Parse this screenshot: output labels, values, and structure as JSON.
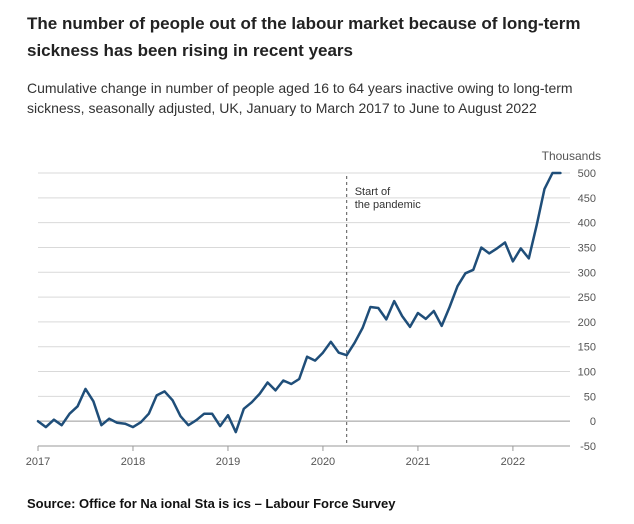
{
  "title": "The number of people out of the labour market because of long-term sickness has been rising in recent years",
  "subtitle": "Cumulative change in number of people aged 16 to 64 years inactive owing to long-term sickness, seasonally adjusted, UK, January to March 2017 to June to August 2022",
  "source": "Source: Office for Na ional Sta is ics – Labour Force Survey",
  "chart_data": {
    "type": "line",
    "units_label": "Thousands",
    "xlim": [
      2017,
      2022.58
    ],
    "ylim": [
      -50,
      500
    ],
    "x_ticks": [
      2017,
      2018,
      2019,
      2020,
      2021,
      2022
    ],
    "x_tick_labels": [
      "2017",
      "2018",
      "2019",
      "2020",
      "2021",
      "2022"
    ],
    "y_ticks": [
      -50,
      0,
      50,
      100,
      150,
      200,
      250,
      300,
      350,
      400,
      450,
      500
    ],
    "y_tick_labels": [
      "-50",
      "0",
      "50",
      "100",
      "150",
      "200",
      "250",
      "300",
      "350",
      "400",
      "450",
      "500"
    ],
    "grid": true,
    "annotation": {
      "x": 2020.25,
      "lines": [
        "Start of",
        "the pandemic"
      ]
    },
    "series": [
      {
        "color": "#1f4e79",
        "x": [
          2017.0,
          2017.083,
          2017.167,
          2017.25,
          2017.333,
          2017.417,
          2017.5,
          2017.583,
          2017.667,
          2017.75,
          2017.833,
          2017.917,
          2018.0,
          2018.083,
          2018.167,
          2018.25,
          2018.333,
          2018.417,
          2018.5,
          2018.583,
          2018.667,
          2018.75,
          2018.833,
          2018.917,
          2019.0,
          2019.083,
          2019.167,
          2019.25,
          2019.333,
          2019.417,
          2019.5,
          2019.583,
          2019.667,
          2019.75,
          2019.833,
          2019.917,
          2020.0,
          2020.083,
          2020.167,
          2020.25,
          2020.333,
          2020.417,
          2020.5,
          2020.583,
          2020.667,
          2020.75,
          2020.833,
          2020.917,
          2021.0,
          2021.083,
          2021.167,
          2021.25,
          2021.333,
          2021.417,
          2021.5,
          2021.583,
          2021.667,
          2021.75,
          2021.833,
          2021.917,
          2022.0,
          2022.083,
          2022.167,
          2022.25,
          2022.333,
          2022.417,
          2022.5
        ],
        "values": [
          0,
          -12,
          3,
          -8,
          15,
          30,
          65,
          40,
          -8,
          5,
          -3,
          -5,
          -12,
          -2,
          15,
          52,
          60,
          42,
          10,
          -8,
          2,
          15,
          15,
          -10,
          12,
          -22,
          25,
          38,
          55,
          78,
          62,
          82,
          75,
          85,
          130,
          122,
          138,
          160,
          138,
          133,
          158,
          188,
          230,
          228,
          205,
          242,
          212,
          190,
          218,
          206,
          222,
          192,
          230,
          272,
          298,
          305,
          350,
          338,
          348,
          360,
          322,
          348,
          328,
          395,
          468,
          500,
          500
        ]
      }
    ]
  }
}
